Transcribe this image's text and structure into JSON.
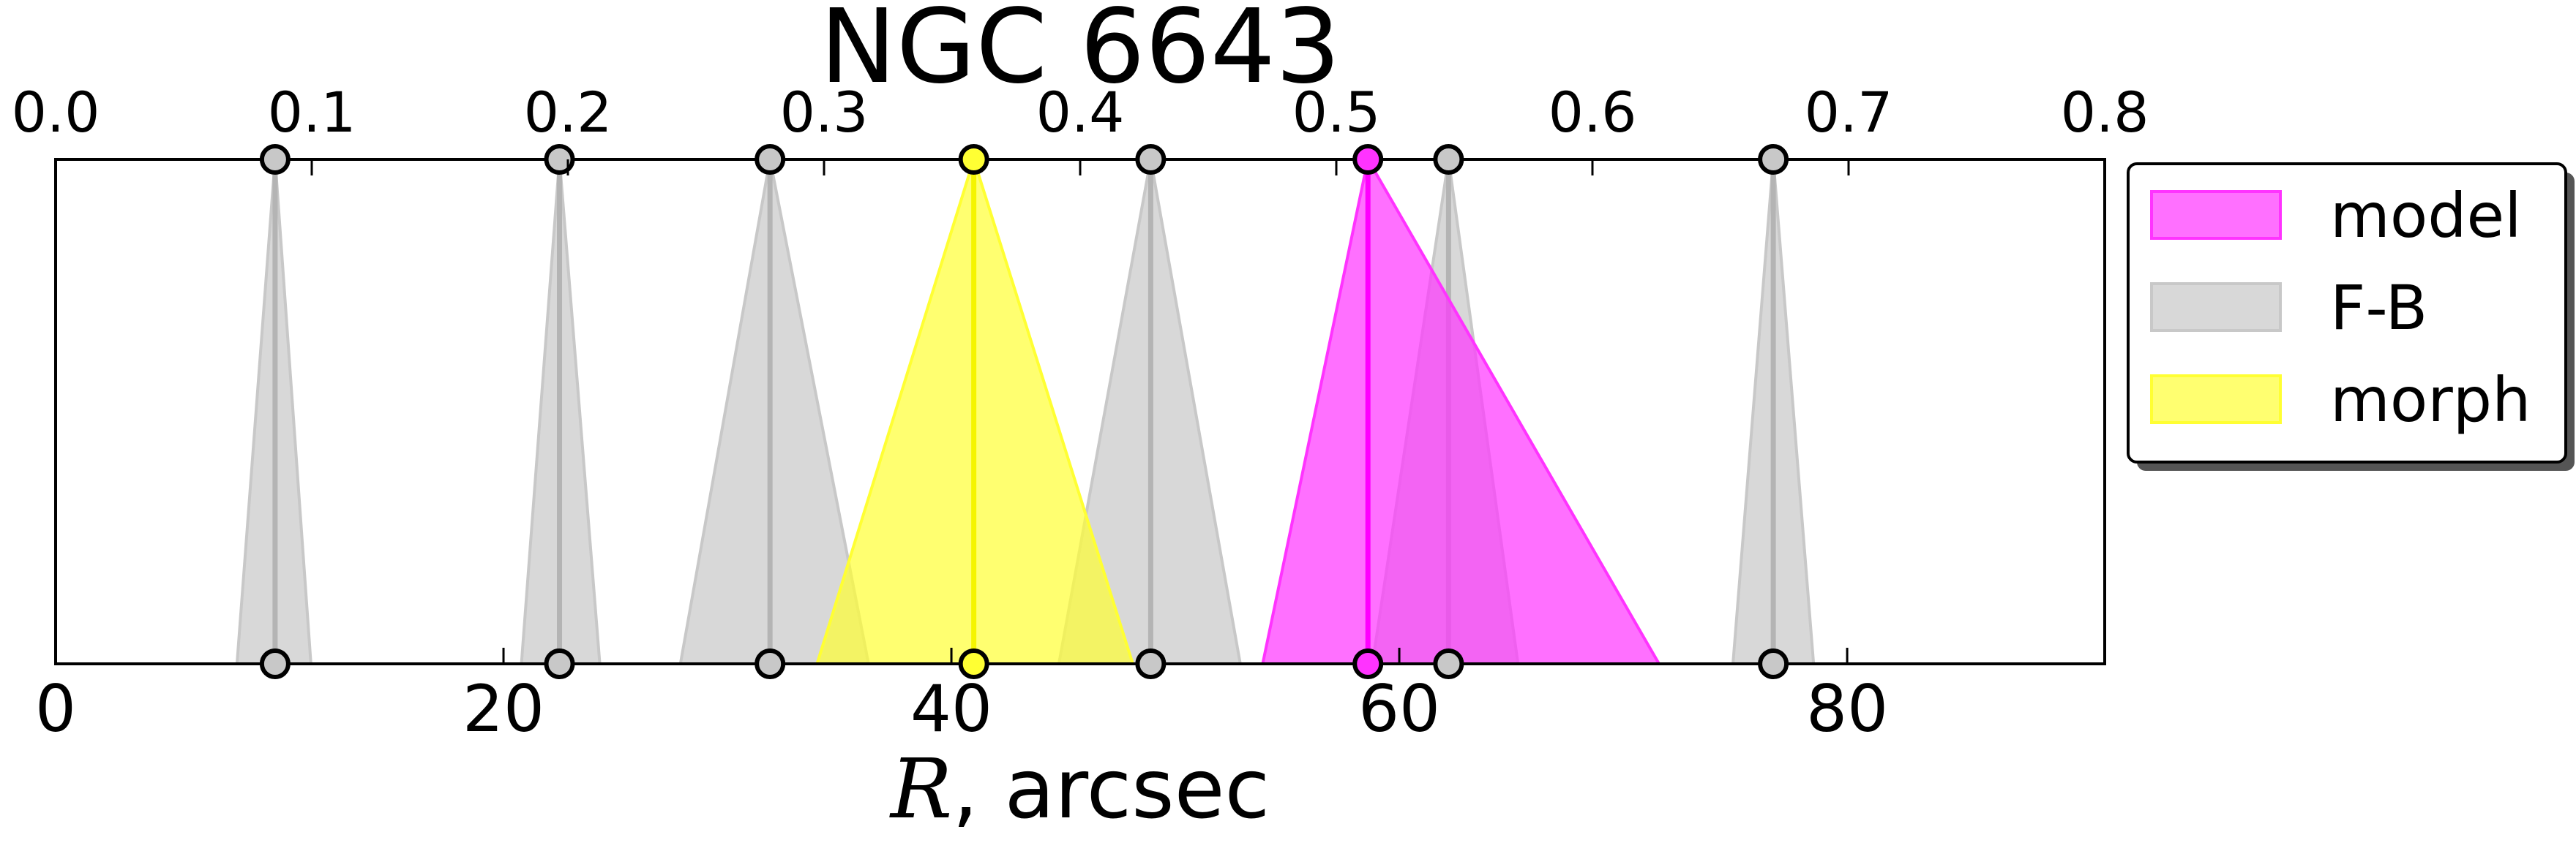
{
  "chart_data": {
    "type": "area",
    "title": "NGC 6643",
    "xlabel_italic": "R",
    "xlabel_rest": ", arcsec",
    "x_range": [
      0,
      91.5
    ],
    "top_axis": {
      "range": [
        0.0,
        0.8
      ],
      "ticks": [
        "0.0",
        "0.1",
        "0.2",
        "0.3",
        "0.4",
        "0.5",
        "0.6",
        "0.7",
        "0.8"
      ]
    },
    "bottom_ticks": [
      {
        "value": 0,
        "label": "0"
      },
      {
        "value": 20,
        "label": "20"
      },
      {
        "value": 40,
        "label": "40"
      },
      {
        "value": 60,
        "label": "60"
      },
      {
        "value": 80,
        "label": "80"
      }
    ],
    "legend": [
      {
        "label": "model",
        "color": "#ff33ff"
      },
      {
        "label": "F-B",
        "color": "#c8c8c8"
      },
      {
        "label": "morph",
        "color": "#ffff33"
      }
    ],
    "legend_position": "outside-top-right",
    "series": [
      {
        "name": "F-B",
        "color": "#c8c8c8",
        "line": "#b4b4b4",
        "markers": [
          {
            "r": 9.8,
            "low": 8.1,
            "high": 11.4
          },
          {
            "r": 22.5,
            "low": 20.8,
            "high": 24.3
          },
          {
            "r": 31.9,
            "low": 27.9,
            "high": 36.3
          },
          {
            "r": 48.9,
            "low": 44.8,
            "high": 52.9
          },
          {
            "r": 62.2,
            "low": 58.8,
            "high": 65.3
          },
          {
            "r": 76.7,
            "low": 74.9,
            "high": 78.5
          }
        ]
      },
      {
        "name": "morph",
        "color": "#ffff33",
        "line": "#f5f500",
        "markers": [
          {
            "r": 41.0,
            "low": 34.0,
            "high": 48.1
          }
        ]
      },
      {
        "name": "model",
        "color": "#ff33ff",
        "line": "#ff00ff",
        "markers": [
          {
            "r": 58.6,
            "low": 53.9,
            "high": 71.6
          }
        ]
      }
    ]
  }
}
